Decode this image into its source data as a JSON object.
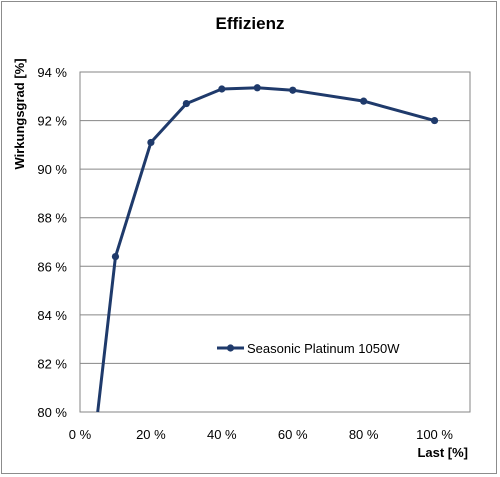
{
  "chart_data": {
    "type": "line",
    "title": "Effizienz",
    "xlabel": "Last [%]",
    "ylabel": "Wirkungsgrad [%]",
    "xlim": [
      0,
      110
    ],
    "ylim": [
      80,
      94
    ],
    "x_ticks": [
      0,
      20,
      40,
      60,
      80,
      100
    ],
    "x_tick_labels": [
      "0 %",
      "20 %",
      "40 %",
      "60 %",
      "80 %",
      "100 %"
    ],
    "y_ticks": [
      80,
      82,
      84,
      86,
      88,
      90,
      92,
      94
    ],
    "y_tick_labels": [
      "80 %",
      "82 %",
      "84 %",
      "86 %",
      "88 %",
      "90 %",
      "92 %",
      "94 %"
    ],
    "grid": true,
    "legend_position": "inside-bottom-right",
    "series": [
      {
        "name": "Seasonic Platinum 1050W",
        "color": "#1f3a6b",
        "points": [
          {
            "x": 5,
            "y": 80.0
          },
          {
            "x": 10,
            "y": 86.4
          },
          {
            "x": 20,
            "y": 91.1
          },
          {
            "x": 30,
            "y": 92.7
          },
          {
            "x": 40,
            "y": 93.3
          },
          {
            "x": 50,
            "y": 93.35
          },
          {
            "x": 60,
            "y": 93.25
          },
          {
            "x": 80,
            "y": 92.8
          },
          {
            "x": 100,
            "y": 92.0
          }
        ],
        "marker_from_index": 1
      }
    ]
  }
}
